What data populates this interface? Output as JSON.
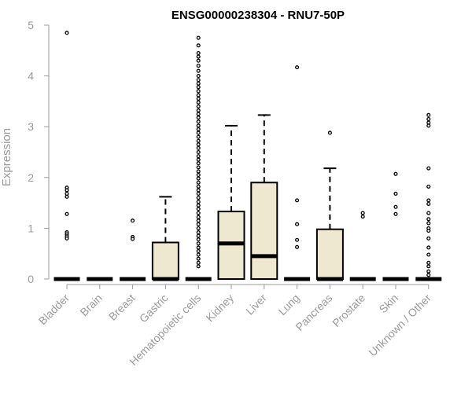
{
  "chart_data": {
    "type": "boxplot",
    "title": "ENSG00000238304 - RNU7-50P",
    "xlabel": "",
    "ylabel": "Expression",
    "ylim": [
      0,
      5
    ],
    "yticks": [
      0,
      1,
      2,
      3,
      4,
      5
    ],
    "grid": false,
    "box_fill": "#efe8d0",
    "box_stroke": "#000000",
    "axis_color": "#9a9a9a",
    "categories": [
      "Bladder",
      "Brain",
      "Breast",
      "Gastric",
      "Hematopoietic cells",
      "Kidney",
      "Liver",
      "Lung",
      "Pancreas",
      "Prostate",
      "Skin",
      "Unknown / Other"
    ],
    "boxes": [
      {
        "category": "Bladder",
        "q1": 0,
        "median": 0,
        "q3": 0,
        "whisker_low": 0,
        "whisker_high": 0,
        "outliers": [
          4.85,
          1.8,
          1.75,
          1.68,
          1.62,
          1.28,
          0.92,
          0.88,
          0.84,
          0.8
        ]
      },
      {
        "category": "Brain",
        "q1": 0,
        "median": 0,
        "q3": 0,
        "whisker_low": 0,
        "whisker_high": 0,
        "outliers": []
      },
      {
        "category": "Breast",
        "q1": 0,
        "median": 0,
        "q3": 0,
        "whisker_low": 0,
        "whisker_high": 0,
        "outliers": [
          1.15,
          0.83,
          0.79
        ]
      },
      {
        "category": "Gastric",
        "q1": 0,
        "median": 0,
        "q3": 0.72,
        "whisker_low": 0,
        "whisker_high": 1.62,
        "outliers": []
      },
      {
        "category": "Hematopoietic cells",
        "q1": 0,
        "median": 0,
        "q3": 0,
        "whisker_low": 0,
        "whisker_high": 0,
        "outliers": [
          4.75,
          4.6,
          4.45,
          4.38,
          4.3,
          4.2,
          4.1,
          4.0,
          3.92,
          3.85,
          3.78,
          3.7,
          3.62,
          3.55,
          3.48,
          3.4,
          3.32,
          3.25,
          3.18,
          3.1,
          3.02,
          2.95,
          2.88,
          2.8,
          2.72,
          2.65,
          2.58,
          2.5,
          2.42,
          2.35,
          2.28,
          2.2,
          2.12,
          2.05,
          1.98,
          1.9,
          1.82,
          1.75,
          1.68,
          1.6,
          1.52,
          1.45,
          1.38,
          1.3,
          1.22,
          1.15,
          1.08,
          1.0,
          0.92,
          0.85,
          0.78,
          0.7,
          0.62,
          0.55,
          0.48,
          0.4,
          0.32,
          0.25
        ]
      },
      {
        "category": "Kidney",
        "q1": 0,
        "median": 0.7,
        "q3": 1.33,
        "whisker_low": 0,
        "whisker_high": 3.02,
        "outliers": []
      },
      {
        "category": "Liver",
        "q1": 0,
        "median": 0.45,
        "q3": 1.9,
        "whisker_low": 0,
        "whisker_high": 3.23,
        "outliers": []
      },
      {
        "category": "Lung",
        "q1": 0,
        "median": 0,
        "q3": 0,
        "whisker_low": 0,
        "whisker_high": 0,
        "outliers": [
          4.17,
          1.55,
          1.08,
          0.77,
          0.63
        ]
      },
      {
        "category": "Pancreas",
        "q1": 0,
        "median": 0,
        "q3": 0.98,
        "whisker_low": 0,
        "whisker_high": 2.18,
        "outliers": [
          2.88
        ]
      },
      {
        "category": "Prostate",
        "q1": 0,
        "median": 0,
        "q3": 0,
        "whisker_low": 0,
        "whisker_high": 0,
        "outliers": [
          1.3,
          1.23
        ]
      },
      {
        "category": "Skin",
        "q1": 0,
        "median": 0,
        "q3": 0,
        "whisker_low": 0,
        "whisker_high": 0,
        "outliers": [
          2.07,
          1.68,
          1.42,
          1.28
        ]
      },
      {
        "category": "Unknown / Other",
        "q1": 0,
        "median": 0,
        "q3": 0,
        "whisker_low": 0,
        "whisker_high": 0,
        "outliers": [
          3.23,
          3.15,
          3.08,
          3.02,
          2.18,
          1.82,
          1.55,
          1.48,
          1.3,
          1.18,
          1.1,
          1.0,
          0.95,
          0.8,
          0.62,
          0.48,
          0.32,
          0.25,
          0.15,
          0.08
        ]
      }
    ]
  }
}
